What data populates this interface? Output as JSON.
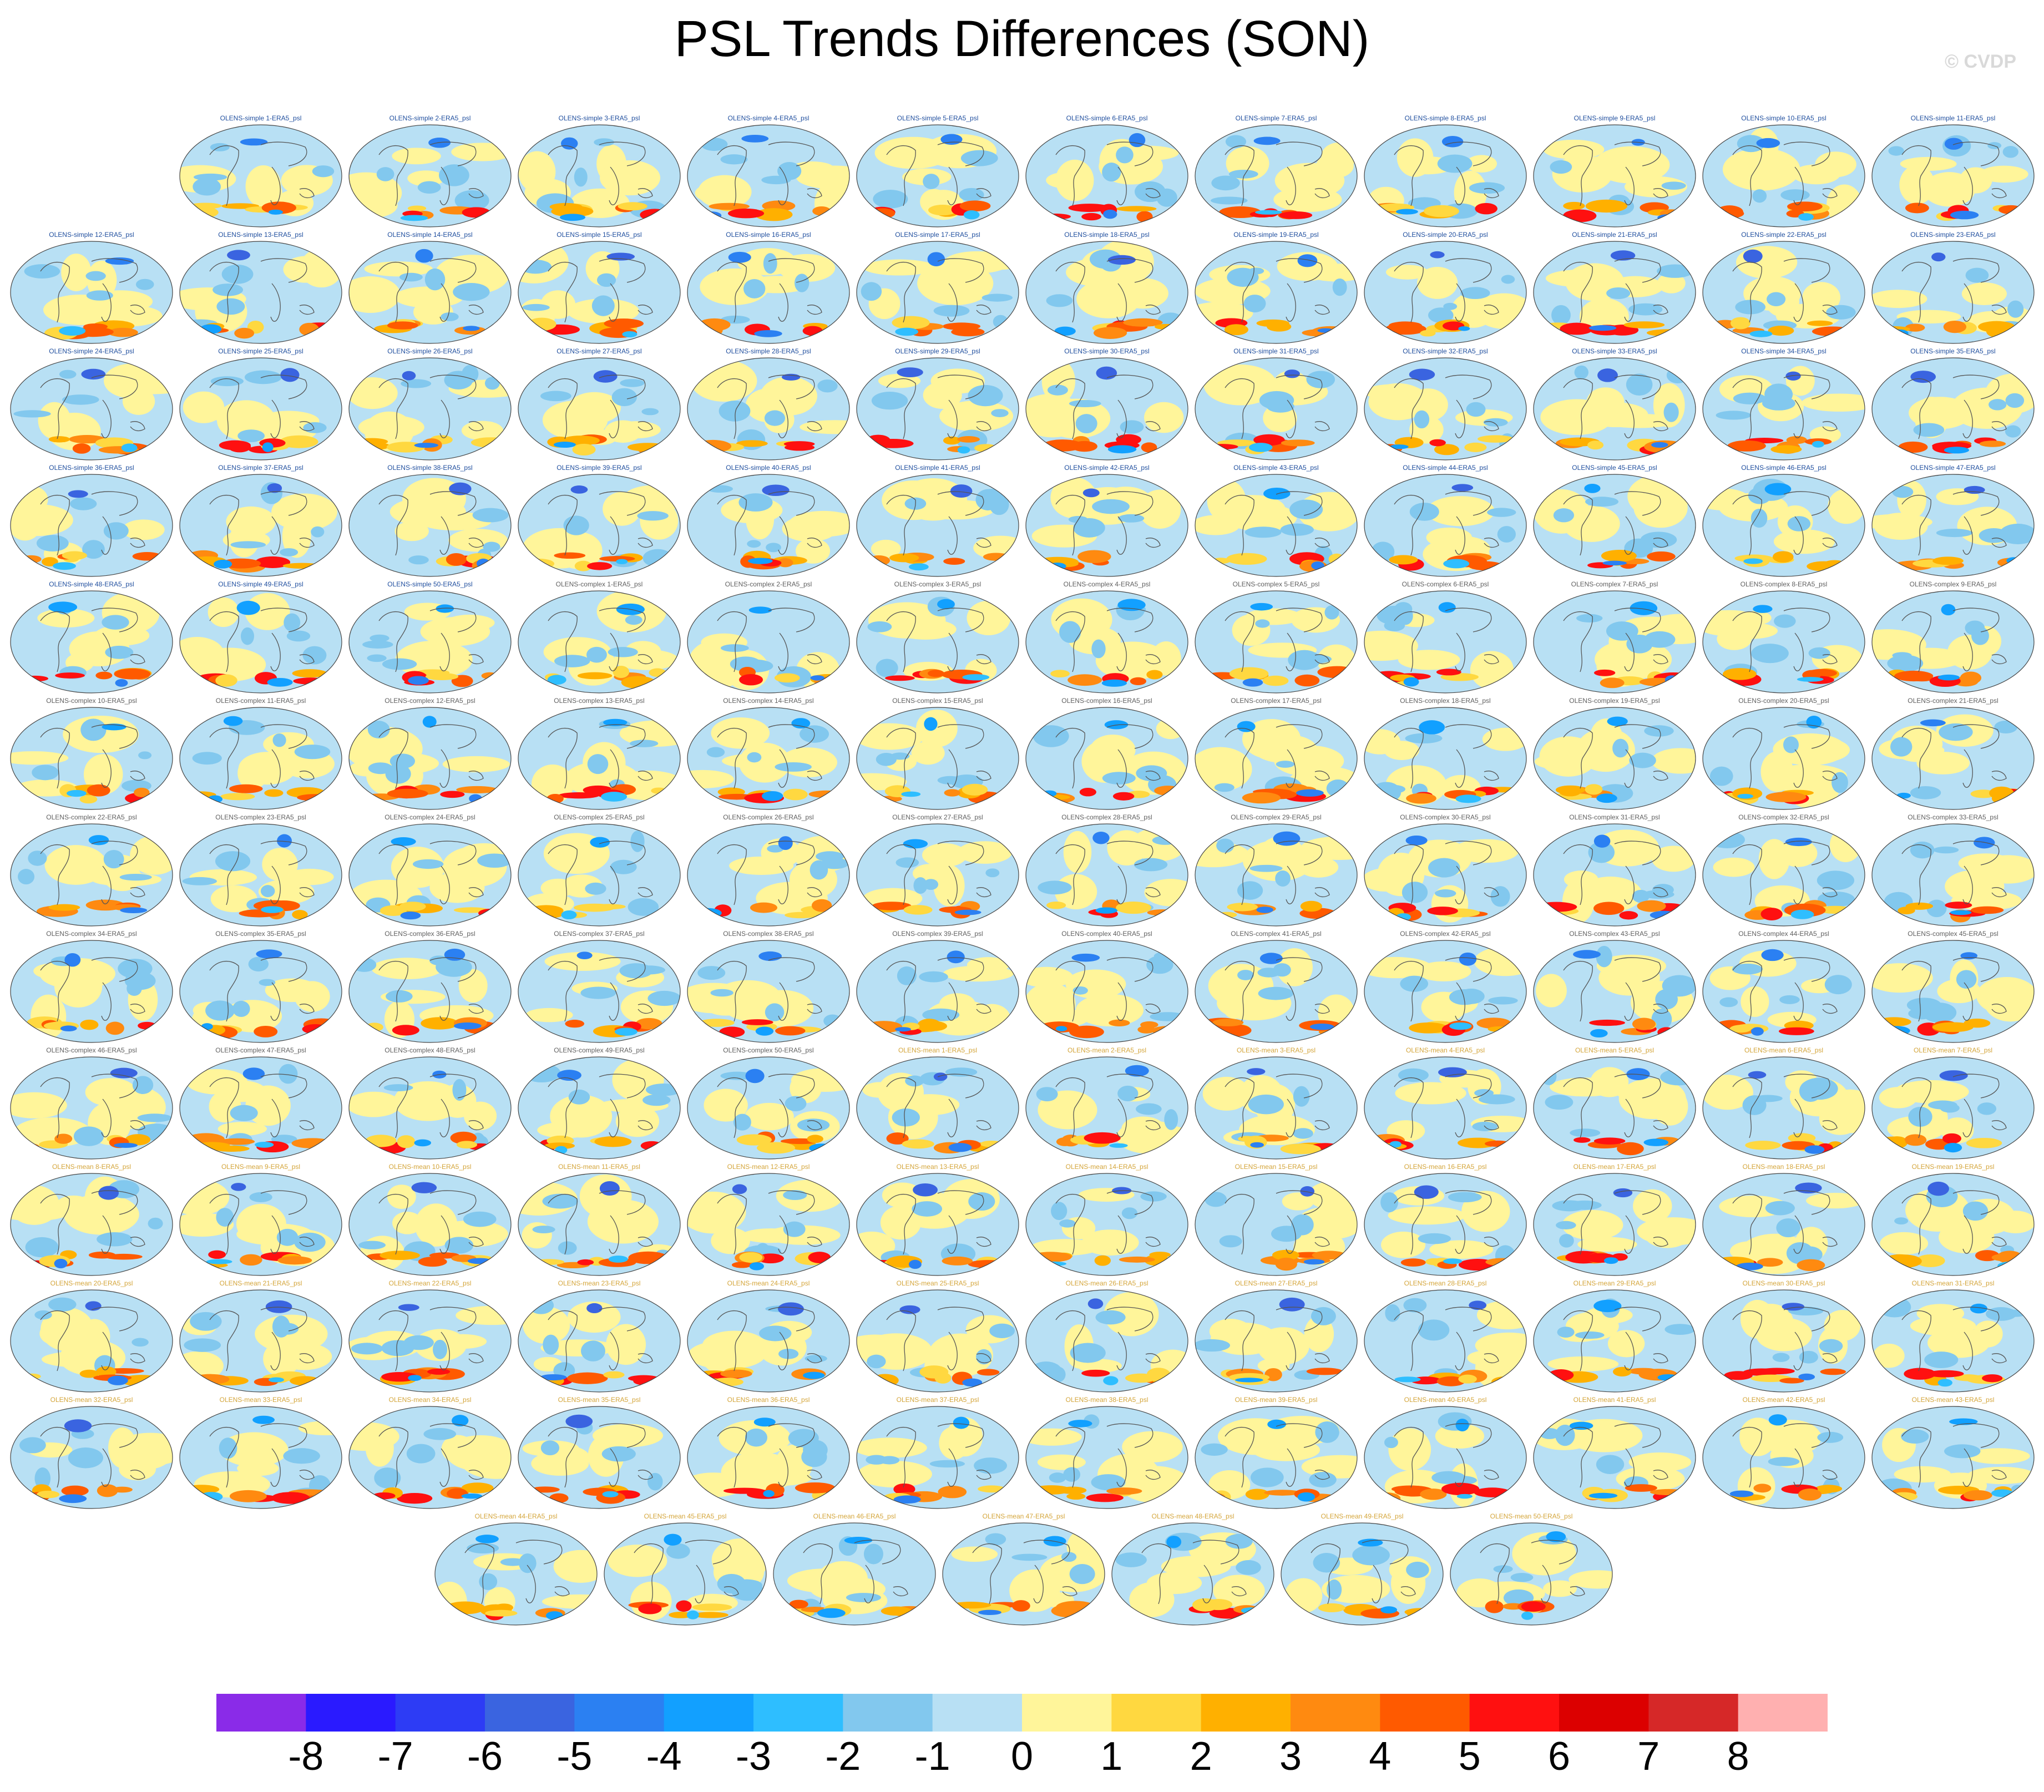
{
  "title": "PSL Trends Differences (SON)",
  "watermark": "© CVDP",
  "chart_data": {
    "type": "heatmap",
    "title": "PSL Trends Differences (SON)",
    "panel_type": "global map, Mollweide-like projection",
    "panel_suffix": "-ERA5_psl",
    "groups": [
      {
        "name": "OLENS-simple",
        "members": [
          1,
          50
        ],
        "title_color": "#1f4e9e"
      },
      {
        "name": "OLENS-complex",
        "members": [
          1,
          50
        ],
        "title_color": "#606060"
      },
      {
        "name": "OLENS-mean",
        "members": [
          1,
          50
        ],
        "title_color": "#d4a53a"
      }
    ],
    "colorbar": {
      "ticks": [
        "-8",
        "-7",
        "-6",
        "-5",
        "-4",
        "-3",
        "-2",
        "-1",
        "0",
        "1",
        "2",
        "3",
        "4",
        "5",
        "6",
        "7",
        "8"
      ],
      "colors": [
        "#8a2be8",
        "#2a1aff",
        "#2d3cf5",
        "#3a64e0",
        "#2b80f2",
        "#12a0ff",
        "#2ebeff",
        "#82c8ee",
        "#b8e0f4",
        "#fff59a",
        "#ffd840",
        "#ffb000",
        "#ff8a10",
        "#ff5a00",
        "#ff1010",
        "#dc0000",
        "#d62828",
        "#ffb0b0"
      ]
    },
    "legend_placement": "bottom"
  }
}
